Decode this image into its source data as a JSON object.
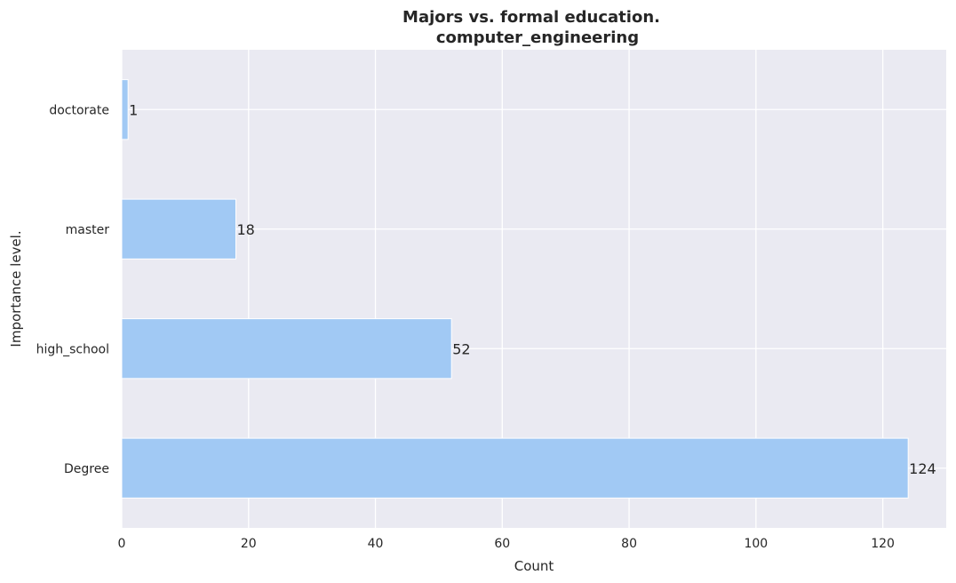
{
  "chart_data": {
    "type": "bar",
    "orientation": "horizontal",
    "title_line1": "Majors vs. formal education.",
    "title_line2": "computer_engineering",
    "xlabel": "Count",
    "ylabel": "Importance level.",
    "categories": [
      "Degree",
      "high_school",
      "master",
      "doctorate"
    ],
    "values": [
      124,
      52,
      18,
      1
    ],
    "data_labels": [
      "124",
      "52",
      "18",
      "1"
    ],
    "xlim": [
      0,
      130
    ],
    "xticks": [
      0,
      20,
      40,
      60,
      80,
      100,
      120
    ],
    "xtick_labels": [
      "0",
      "20",
      "40",
      "60",
      "80",
      "100",
      "120"
    ],
    "grid": true,
    "colors": {
      "bar": "#a1c9f4",
      "background": "#eaeaf2",
      "grid": "#ffffff",
      "text": "#262626"
    }
  }
}
